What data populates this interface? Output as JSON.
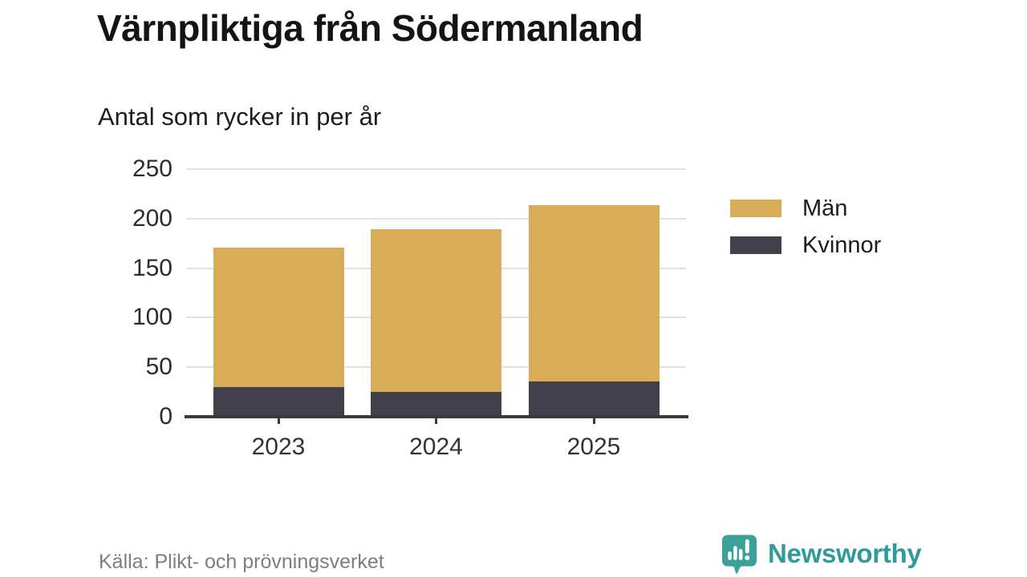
{
  "header": {
    "title": "Värnpliktiga från Södermanland",
    "subtitle": "Antal som rycker in per år"
  },
  "chart_data": {
    "type": "bar",
    "stacked": true,
    "title": "Värnpliktiga från Södermanland",
    "subtitle": "Antal som rycker in per år",
    "categories": [
      "2023",
      "2024",
      "2025"
    ],
    "series": [
      {
        "name": "Män",
        "color": "#D9AC57",
        "values": [
          141,
          164,
          178
        ]
      },
      {
        "name": "Kvinnor",
        "color": "#43404E",
        "values": [
          30,
          25,
          36
        ]
      }
    ],
    "stack_bottom_to_top": [
      "Kvinnor",
      "Män"
    ],
    "stacked_totals": [
      171,
      189,
      214
    ],
    "xlabel": "",
    "ylabel": "Antal som rycker in per år",
    "ylim": [
      0,
      250
    ],
    "yticks": [
      0,
      50,
      100,
      150,
      200,
      250
    ],
    "grid": true,
    "legend_position": "right"
  },
  "legend": {
    "items": [
      {
        "label": "Män",
        "color": "#D9AC57"
      },
      {
        "label": "Kvinnor",
        "color": "#43404E"
      }
    ]
  },
  "footer": {
    "source": "Källa: Plikt- och prövningsverket",
    "logo_text": "Newsworthy"
  },
  "colors": {
    "men_gold": "#D9AC57",
    "women_dark": "#43404E",
    "brand_teal": "#2E9B98",
    "gridline": "#E1E1E1",
    "axis": "#3A3A3A",
    "source_gray": "#7E7D85"
  }
}
